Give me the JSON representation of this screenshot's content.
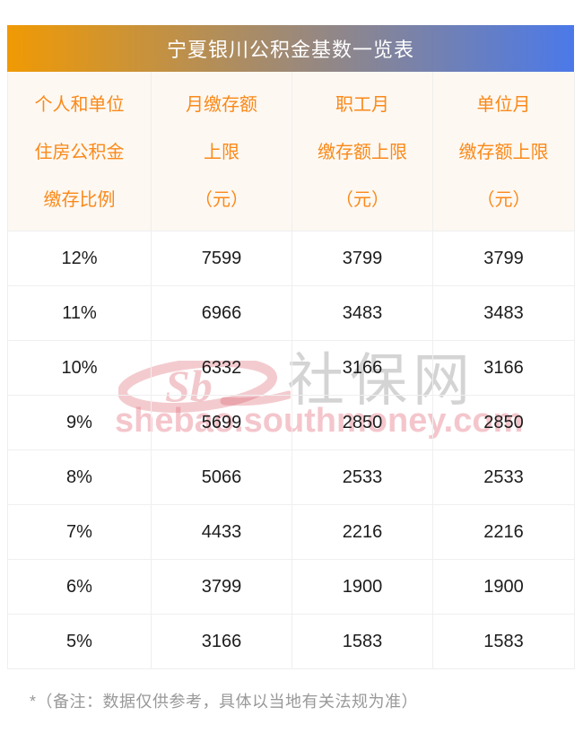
{
  "page": {
    "title": "宁夏银川公积金基数一览表",
    "footnote": "*（备注：数据仅供参考，具体以当地有关法规为准）"
  },
  "table": {
    "headers": [
      {
        "lines": [
          "个人和单位",
          "住房公积金",
          "缴存比例"
        ]
      },
      {
        "lines": [
          "月缴存额",
          "上限",
          "（元）"
        ]
      },
      {
        "lines": [
          "职工月",
          "缴存额上限",
          "（元）"
        ]
      },
      {
        "lines": [
          "单位月",
          "缴存额上限",
          "（元）"
        ]
      }
    ],
    "rows": [
      [
        "12%",
        "7599",
        "3799",
        "3799"
      ],
      [
        "11%",
        "6966",
        "3483",
        "3483"
      ],
      [
        "10%",
        "6332",
        "3166",
        "3166"
      ],
      [
        "9%",
        "5699",
        "2850",
        "2850"
      ],
      [
        "8%",
        "5066",
        "2533",
        "2533"
      ],
      [
        "7%",
        "4433",
        "2216",
        "2216"
      ],
      [
        "6%",
        "3799",
        "1900",
        "1900"
      ],
      [
        "5%",
        "3166",
        "1583",
        "1583"
      ]
    ]
  },
  "watermark": {
    "logo_text": "Sb",
    "site_name": "社保网",
    "site_url": "shebao.southmoney.com"
  },
  "colors": {
    "title_gradient_left": "#f09a04",
    "title_gradient_right": "#4b79e9",
    "title_text": "#ffffff",
    "header_bg": "#fdf8f2",
    "header_text": "#fa8919",
    "body_text": "#1c1c1c",
    "grid_border": "#efefef",
    "footnote_text": "#999999",
    "watermark_pink": "#e47885",
    "watermark_gray": "#969496"
  }
}
